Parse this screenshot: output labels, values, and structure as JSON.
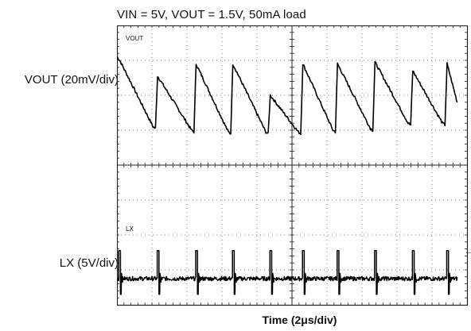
{
  "chart_data": {
    "type": "line",
    "title": "VIN = 5V, VOUT = 1.5V, 50mA load",
    "xlabel": "Time (2μs/div)",
    "x_divisions": 10,
    "y_divisions": 8,
    "grid": true,
    "series": [
      {
        "name": "VOUT",
        "axis_label": "VOUT (20mV/div)",
        "x": [
          0.0,
          0.08,
          1.03,
          1.1,
          1.16,
          2.13,
          2.2,
          2.26,
          3.18,
          3.25,
          3.31,
          4.25,
          4.32,
          4.38,
          5.18,
          5.25,
          5.31,
          6.17,
          6.24,
          6.3,
          7.24,
          7.31,
          7.37,
          8.32,
          8.39,
          8.45,
          9.3,
          9.37,
          9.43,
          9.72
        ],
        "y": [
          1.1,
          1.0,
          -0.9,
          -0.95,
          0.55,
          -1.0,
          -1.05,
          0.9,
          -1.05,
          -1.1,
          0.9,
          -1.05,
          -1.1,
          0.0,
          -1.05,
          -1.1,
          0.9,
          -1.0,
          -1.05,
          0.9,
          -0.95,
          -1.0,
          0.95,
          -0.8,
          -0.85,
          0.7,
          -0.8,
          -0.85,
          0.9,
          -0.2
        ]
      },
      {
        "name": "LX",
        "axis_label": "LX (5V/div)",
        "edges": [
          0.05,
          1.15,
          2.25,
          3.3,
          4.37,
          5.3,
          6.29,
          7.36,
          8.44,
          9.42
        ],
        "pulse_width": 0.05,
        "y_high": 0.55,
        "y_low": -0.25
      }
    ],
    "channel_tags": [
      "VOUT",
      "LX"
    ]
  }
}
